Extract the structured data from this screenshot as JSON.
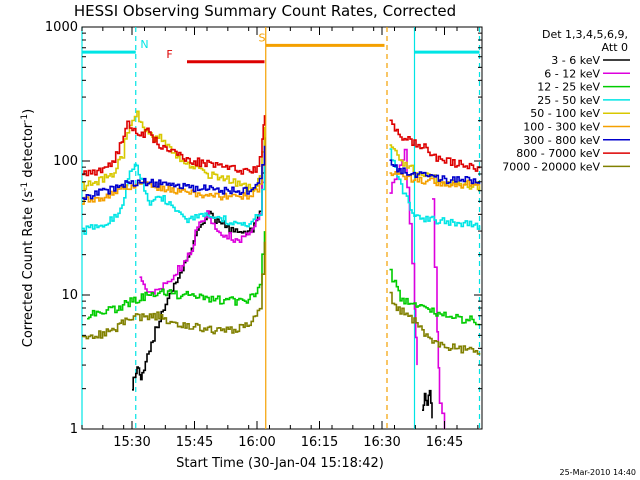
{
  "chart_data": {
    "type": "line",
    "title": "HESSI Observing Summary Count Rates, Corrected",
    "xlabel": "Start Time (30-Jan-04 15:18:42)",
    "ylabel_main": "Corrected Count Rate (s",
    "ylabel_sup": "-1",
    "ylabel_end": " detector",
    "ylabel_sup2": "-1",
    "ylabel_close": ")",
    "y_scale": "log",
    "ylim": [
      1,
      1000
    ],
    "xlim": [
      15.3,
      16.9
    ],
    "x_ticks": [
      {
        "value": 15.5,
        "label": "15:30"
      },
      {
        "value": 15.75,
        "label": "15:45"
      },
      {
        "value": 16.0,
        "label": "16:00"
      },
      {
        "value": 16.25,
        "label": "16:15"
      },
      {
        "value": 16.5,
        "label": "16:30"
      },
      {
        "value": 16.75,
        "label": "16:45"
      }
    ],
    "y_ticks": [
      {
        "value": 1,
        "label": "1"
      },
      {
        "value": 10,
        "label": "10"
      },
      {
        "value": 100,
        "label": "100"
      },
      {
        "value": 1000,
        "label": "1000"
      }
    ],
    "legend": {
      "heading1": "Det 1,3,4,5,6,9,",
      "heading2": "Att 0",
      "placement": "right"
    },
    "footer_date": "25-Mar-2010 14:40",
    "series": [
      {
        "name": "3 - 6 keV",
        "color": "#000000",
        "x": [
          15.5,
          15.51,
          15.52,
          15.53,
          15.54,
          15.56,
          15.6,
          15.65,
          15.7,
          15.73,
          15.76,
          15.8,
          15.84,
          15.88,
          15.93,
          15.98,
          16.01,
          16.03
        ],
        "y": [
          2.1,
          2.5,
          3.0,
          2.4,
          2.6,
          3.5,
          6,
          10,
          16,
          20,
          30,
          40,
          36,
          32,
          28,
          30,
          45,
          150
        ]
      },
      {
        "name": "3 - 6 keV",
        "color": "#000000",
        "x": [
          16.66,
          16.67,
          16.68,
          16.69,
          16.7
        ],
        "y": [
          1.3,
          1.9,
          1.5,
          2.0,
          1.2
        ]
      },
      {
        "name": "6 - 12 keV",
        "color": "#dd00dd",
        "x": [
          15.53,
          15.56,
          15.6,
          15.65,
          15.7,
          15.73,
          15.76,
          15.8,
          15.84,
          15.88,
          15.93,
          15.98,
          16.01,
          16.03
        ],
        "y": [
          13,
          10,
          11,
          13,
          17,
          20,
          32,
          40,
          30,
          28,
          25,
          30,
          40,
          120
        ]
      },
      {
        "name": "6 - 12 keV",
        "color": "#dd00dd",
        "x": [
          16.53,
          16.55,
          16.57,
          16.59,
          16.61,
          16.63,
          16.64
        ],
        "y": [
          60,
          75,
          95,
          120,
          35,
          8,
          3
        ]
      },
      {
        "name": "6 - 12 keV",
        "color": "#dd00dd",
        "x": [
          16.7,
          16.72,
          16.73,
          16.75
        ],
        "y": [
          50,
          5,
          1.5,
          1.0
        ]
      },
      {
        "name": "12 - 25 keV",
        "color": "#00cc00",
        "x": [
          15.32,
          15.38,
          15.44,
          15.5,
          15.56,
          15.62,
          15.68,
          15.74,
          15.8,
          15.86,
          15.92,
          15.98,
          16.01,
          16.03
        ],
        "y": [
          7,
          7.5,
          8,
          9,
          10,
          10.5,
          10,
          10,
          9.5,
          9,
          9,
          9.5,
          12,
          30
        ]
      },
      {
        "name": "12 - 25 keV",
        "color": "#00cc00",
        "x": [
          16.53,
          16.55,
          16.58,
          16.62,
          16.66,
          16.7,
          16.74,
          16.78,
          16.82,
          16.86,
          16.89
        ],
        "y": [
          15,
          12,
          9,
          8.5,
          8,
          7.5,
          7,
          7,
          6.5,
          6.5,
          6
        ]
      },
      {
        "name": "25 - 50 keV",
        "color": "#00e5e5",
        "x": [
          15.3,
          15.36,
          15.42,
          15.46,
          15.49,
          15.51,
          15.54,
          15.57,
          15.61,
          15.64,
          15.68,
          15.72,
          15.76,
          15.8,
          15.85,
          15.9,
          15.96,
          16.01,
          16.03
        ],
        "y": [
          30,
          33,
          36,
          45,
          85,
          100,
          70,
          45,
          55,
          48,
          40,
          36,
          38,
          40,
          37,
          35,
          33,
          40,
          100
        ]
      },
      {
        "name": "25 - 50 keV",
        "color": "#00e5e5",
        "x": [
          16.53,
          16.56,
          16.59,
          16.62,
          16.66,
          16.7,
          16.75,
          16.8,
          16.85,
          16.89
        ],
        "y": [
          120,
          75,
          55,
          42,
          37,
          36,
          35,
          34,
          34,
          33
        ]
      },
      {
        "name": "50 - 100 keV",
        "color": "#d8c800",
        "x": [
          15.3,
          15.36,
          15.42,
          15.46,
          15.48,
          15.5,
          15.52,
          15.55,
          15.58,
          15.61,
          15.65,
          15.7,
          15.76,
          15.82,
          15.88,
          15.94,
          15.99,
          16.01,
          16.03
        ],
        "y": [
          65,
          70,
          80,
          110,
          170,
          200,
          220,
          170,
          150,
          150,
          120,
          100,
          85,
          78,
          72,
          65,
          60,
          80,
          180
        ]
      },
      {
        "name": "50 - 100 keV",
        "color": "#d8c800",
        "x": [
          16.53,
          16.56,
          16.6,
          16.65,
          16.7,
          16.75,
          16.8,
          16.85,
          16.89
        ],
        "y": [
          130,
          110,
          90,
          80,
          75,
          70,
          68,
          66,
          65
        ]
      },
      {
        "name": "100 - 300 keV",
        "color": "#f4a000",
        "x": [
          15.3,
          15.36,
          15.42,
          15.48,
          15.54,
          15.6,
          15.66,
          15.72,
          15.78,
          15.84,
          15.9,
          15.96,
          16.01,
          16.03
        ],
        "y": [
          50,
          52,
          58,
          65,
          66,
          64,
          60,
          58,
          56,
          55,
          54,
          54,
          65,
          120
        ]
      },
      {
        "name": "100 - 300 keV",
        "color": "#f4a000",
        "x": [
          16.53,
          16.56,
          16.6,
          16.65,
          16.7,
          16.75,
          16.8,
          16.85,
          16.89
        ],
        "y": [
          85,
          80,
          75,
          72,
          70,
          69,
          68,
          67,
          67
        ]
      },
      {
        "name": "300 - 800 keV",
        "color": "#0000cc",
        "x": [
          15.3,
          15.36,
          15.42,
          15.48,
          15.54,
          15.6,
          15.66,
          15.72,
          15.78,
          15.84,
          15.9,
          15.96,
          16.01,
          16.03
        ],
        "y": [
          55,
          57,
          62,
          68,
          70,
          68,
          65,
          63,
          62,
          60,
          60,
          60,
          70,
          130
        ]
      },
      {
        "name": "300 - 800 keV",
        "color": "#0000cc",
        "x": [
          16.53,
          16.56,
          16.6,
          16.65,
          16.7,
          16.75,
          16.8,
          16.85,
          16.89
        ],
        "y": [
          95,
          88,
          82,
          78,
          75,
          73,
          72,
          71,
          70
        ]
      },
      {
        "name": "800 - 7000 keV",
        "color": "#dd0000",
        "x": [
          15.3,
          15.36,
          15.42,
          15.45,
          15.48,
          15.5,
          15.53,
          15.56,
          15.6,
          15.64,
          15.68,
          15.74,
          15.8,
          15.86,
          15.92,
          15.97,
          16.0,
          16.02,
          16.03
        ],
        "y": [
          80,
          85,
          95,
          130,
          185,
          175,
          150,
          165,
          135,
          125,
          110,
          100,
          95,
          90,
          85,
          82,
          90,
          140,
          220
        ]
      },
      {
        "name": "800 - 7000 keV",
        "color": "#dd0000",
        "x": [
          16.53,
          16.55,
          16.58,
          16.62,
          16.66,
          16.7,
          16.75,
          16.8,
          16.85,
          16.89
        ],
        "y": [
          210,
          170,
          150,
          140,
          130,
          110,
          100,
          95,
          90,
          88
        ]
      },
      {
        "name": "7000 - 20000 keV",
        "color": "#808000",
        "x": [
          15.3,
          15.36,
          15.42,
          15.48,
          15.54,
          15.6,
          15.66,
          15.72,
          15.78,
          15.84,
          15.9,
          15.96,
          16.01,
          16.03
        ],
        "y": [
          5,
          5,
          5.5,
          6.5,
          7,
          7,
          6,
          6,
          5.5,
          5.5,
          5.5,
          6,
          8,
          25
        ]
      },
      {
        "name": "7000 - 20000 keV",
        "color": "#808000",
        "x": [
          16.53,
          16.55,
          16.58,
          16.62,
          16.66,
          16.7,
          16.75,
          16.8,
          16.85,
          16.89
        ],
        "y": [
          10,
          8.5,
          7.5,
          6.5,
          5.5,
          4.5,
          4.2,
          4.0,
          3.8,
          3.7
        ]
      }
    ],
    "legend_entries": [
      {
        "name": "3 - 6 keV",
        "color": "#000000"
      },
      {
        "name": "6 - 12 keV",
        "color": "#dd00dd"
      },
      {
        "name": "12 - 25 keV",
        "color": "#00cc00"
      },
      {
        "name": "25 - 50 keV",
        "color": "#00e5e5"
      },
      {
        "name": "50 - 100 keV",
        "color": "#d8c800"
      },
      {
        "name": "100 - 300 keV",
        "color": "#f4a000"
      },
      {
        "name": "300 - 800 keV",
        "color": "#0000cc"
      },
      {
        "name": "800 - 7000 keV",
        "color": "#dd0000"
      },
      {
        "name": "7000 - 20000 keV",
        "color": "#808000"
      }
    ],
    "vlines": [
      {
        "x": 15.3,
        "color": "#00e5e5",
        "style": "solid"
      },
      {
        "x": 15.515,
        "color": "#00e5e5",
        "style": "dashed"
      },
      {
        "x": 16.035,
        "color": "#f4a000",
        "style": "solid"
      },
      {
        "x": 16.52,
        "color": "#f4a000",
        "style": "dashed"
      },
      {
        "x": 16.63,
        "color": "#00e5e5",
        "style": "solid"
      },
      {
        "x": 16.89,
        "color": "#00e5e5",
        "style": "dashed"
      }
    ],
    "bars": [
      {
        "label": "N",
        "x0": 15.3,
        "x1": 15.515,
        "y": 650,
        "color": "#00e5e5",
        "label_x": 15.55
      },
      {
        "label": "",
        "x0": 16.63,
        "x1": 16.89,
        "y": 650,
        "color": "#00e5e5",
        "label_x": null
      },
      {
        "label": "F",
        "x0": 15.72,
        "x1": 16.03,
        "y": 550,
        "color": "#dd0000",
        "label_x": 15.65
      },
      {
        "label": "S",
        "x0": 16.035,
        "x1": 16.51,
        "y": 730,
        "color": "#f4a000",
        "label_x": 16.02
      }
    ]
  }
}
